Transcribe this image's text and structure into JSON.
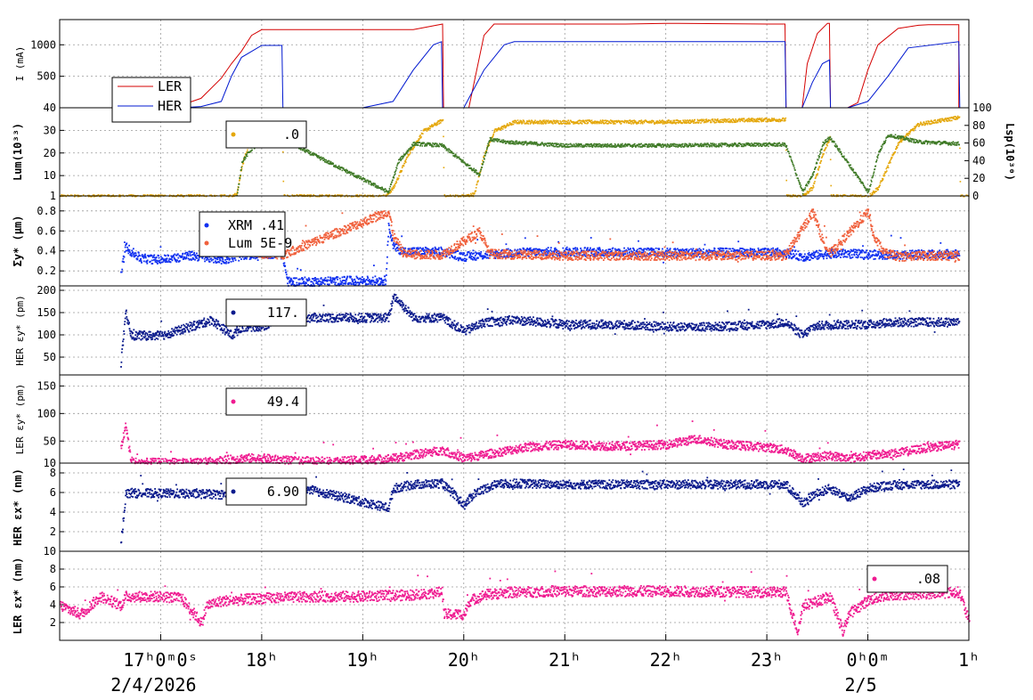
{
  "colors": {
    "red": "#d40000",
    "blue": "#0018d0",
    "navy": "#0a1a8c",
    "orange": "#e4a70a",
    "green": "#3f7a26",
    "tomato": "#f0603c",
    "pink": "#ef1a90",
    "xrm_blue": "#1030f0"
  },
  "x_axis": {
    "ticks": [
      {
        "hour": 17,
        "text": "17ʰ0ᵐ0ˢ"
      },
      {
        "hour": 18,
        "text": "18ʰ"
      },
      {
        "hour": 19,
        "text": "19ʰ"
      },
      {
        "hour": 20,
        "text": "20ʰ"
      },
      {
        "hour": 21,
        "text": "21ʰ"
      },
      {
        "hour": 22,
        "text": "22ʰ"
      },
      {
        "hour": 23,
        "text": "23ʰ"
      },
      {
        "hour": 24,
        "text": "0ʰ0ᵐ"
      },
      {
        "hour": 25,
        "text": "1ʰ"
      }
    ],
    "dates": [
      {
        "hour": 17,
        "text": "2/4/2026"
      },
      {
        "hour": 24,
        "text": "2/5"
      }
    ],
    "range_hours": [
      16.0,
      25.0
    ]
  },
  "chart_data": [
    {
      "type": "line",
      "ylabel": "I (mA)",
      "ylim": [
        0,
        1400
      ],
      "yticks": [
        500,
        1000
      ],
      "grid": true,
      "legend": "top-left",
      "series": [
        {
          "name": "LER",
          "color": "red",
          "x": [
            16.0,
            16.3,
            16.5,
            16.7,
            17.0,
            17.2,
            17.4,
            17.6,
            17.7,
            17.8,
            17.9,
            18.0,
            18.5,
            19.0,
            19.5,
            19.79,
            19.8,
            20.0,
            20.05,
            20.2,
            20.3,
            20.6,
            21.0,
            21.6,
            22.0,
            23.0,
            23.18,
            23.19,
            23.35,
            23.4,
            23.5,
            23.6,
            23.62,
            23.63,
            23.8,
            23.9,
            24.0,
            24.1,
            24.3,
            24.5,
            24.6,
            24.9,
            24.9,
            25.0
          ],
          "y": [
            0,
            0,
            0,
            10,
            30,
            40,
            150,
            470,
            700,
            900,
            1150,
            1240,
            1240,
            1240,
            1240,
            1330,
            0,
            0,
            0,
            1150,
            1330,
            1330,
            1330,
            1330,
            1340,
            1330,
            1330,
            0,
            0,
            700,
            1180,
            1340,
            1340,
            0,
            0,
            80,
            600,
            1000,
            1260,
            1310,
            1320,
            1320,
            0,
            0
          ]
        },
        {
          "name": "HER",
          "color": "blue",
          "x": [
            16.0,
            17.2,
            17.4,
            17.6,
            17.7,
            17.8,
            18.0,
            18.2,
            18.21,
            19.0,
            19.3,
            19.5,
            19.7,
            19.78,
            19.79,
            20.0,
            20.2,
            20.4,
            20.5,
            21.0,
            22.0,
            23.0,
            23.18,
            23.19,
            23.35,
            23.45,
            23.55,
            23.62,
            23.63,
            23.8,
            24.0,
            24.2,
            24.4,
            24.9,
            24.91,
            25.0
          ],
          "y": [
            0,
            0,
            20,
            100,
            500,
            800,
            990,
            990,
            0,
            0,
            100,
            600,
            1000,
            1050,
            0,
            0,
            600,
            1000,
            1050,
            1050,
            1050,
            1050,
            1050,
            0,
            0,
            400,
            700,
            760,
            0,
            0,
            100,
            500,
            950,
            1050,
            0,
            0
          ]
        }
      ]
    },
    {
      "type": "line",
      "ylabel": "Lum(10³³)",
      "y2label": "Lsp(10³⁰)",
      "ylim": [
        1,
        40
      ],
      "yticks": [
        1,
        10,
        20,
        30,
        40
      ],
      "y2lim": [
        0,
        100
      ],
      "y2ticks": [
        0,
        20,
        40,
        60,
        80,
        100
      ],
      "legend_text": ".0",
      "series": [
        {
          "color": "orange",
          "axis": "left",
          "x": [
            16.0,
            17.7,
            17.75,
            17.8,
            17.9,
            18.0,
            18.2,
            18.21,
            19.0,
            19.22,
            19.3,
            19.45,
            19.6,
            19.79,
            19.8,
            20.0,
            20.1,
            20.2,
            20.3,
            20.5,
            21.0,
            22.0,
            23.0,
            23.18,
            23.19,
            23.35,
            23.45,
            23.55,
            23.62,
            23.63,
            23.8,
            24.0,
            24.1,
            24.3,
            24.5,
            24.9,
            24.91,
            25.0
          ],
          "y": [
            1,
            1,
            2,
            15,
            28,
            32,
            33,
            1,
            1,
            1,
            5,
            20,
            30,
            35,
            1,
            1,
            2,
            20,
            30,
            34,
            34,
            34,
            35,
            35,
            1,
            1,
            5,
            20,
            27,
            1,
            1,
            1,
            5,
            25,
            33,
            36,
            1,
            1
          ]
        },
        {
          "color": "green",
          "axis": "right",
          "x": [
            17.75,
            17.8,
            17.9,
            18.0,
            18.2,
            19.25,
            19.35,
            19.5,
            19.78,
            20.15,
            20.25,
            20.4,
            21.0,
            22.0,
            23.0,
            23.18,
            23.35,
            23.45,
            23.55,
            23.62,
            24.0,
            24.1,
            24.2,
            24.5,
            24.9
          ],
          "y": [
            0,
            40,
            55,
            60,
            65,
            5,
            40,
            60,
            58,
            25,
            65,
            62,
            58,
            58,
            59,
            59,
            5,
            25,
            60,
            67,
            5,
            50,
            70,
            62,
            60
          ]
        }
      ]
    },
    {
      "type": "scatter",
      "ylabel": "Σy* (μm)",
      "ylim": [
        0.05,
        0.95
      ],
      "yticks": [
        0.2,
        0.4,
        0.6,
        0.8
      ],
      "series": [
        {
          "name": "XRM .41",
          "color": "xrm_blue",
          "x": [
            16.6,
            16.65,
            16.7,
            16.8,
            17.0,
            17.3,
            17.6,
            17.8,
            18.0,
            18.2,
            18.25,
            18.5,
            19.0,
            19.22,
            19.25,
            19.3,
            19.4,
            19.6,
            19.78,
            20.0,
            20.1,
            20.5,
            21.0,
            22.0,
            23.0,
            23.18,
            23.35,
            23.45,
            23.6,
            23.8,
            24.0,
            24.2,
            24.5,
            24.9
          ],
          "y": [
            0.2,
            0.45,
            0.4,
            0.33,
            0.32,
            0.36,
            0.32,
            0.36,
            0.38,
            0.37,
            0.1,
            0.1,
            0.11,
            0.11,
            0.65,
            0.45,
            0.4,
            0.4,
            0.4,
            0.35,
            0.36,
            0.39,
            0.4,
            0.39,
            0.39,
            0.39,
            0.35,
            0.36,
            0.38,
            0.38,
            0.37,
            0.37,
            0.37,
            0.38
          ]
        },
        {
          "name": "Lum 5E-9",
          "color": "tomato",
          "x": [
            17.75,
            17.8,
            18.0,
            18.2,
            19.25,
            19.3,
            19.4,
            19.6,
            19.78,
            20.15,
            20.25,
            20.5,
            21.0,
            22.0,
            23.0,
            23.18,
            23.45,
            23.55,
            23.62,
            24.0,
            24.05,
            24.15,
            24.3,
            24.5,
            24.9
          ],
          "y": [
            0.75,
            0.42,
            0.38,
            0.37,
            0.8,
            0.55,
            0.38,
            0.37,
            0.37,
            0.6,
            0.38,
            0.37,
            0.36,
            0.36,
            0.36,
            0.36,
            0.8,
            0.5,
            0.38,
            0.8,
            0.55,
            0.39,
            0.35,
            0.36,
            0.36
          ]
        }
      ]
    },
    {
      "type": "scatter",
      "ylabel": "HER εy* (pm)",
      "ylim": [
        10,
        210
      ],
      "yticks": [
        50,
        100,
        150,
        200
      ],
      "legend_text": "117.",
      "series": [
        {
          "color": "navy",
          "x": [
            16.6,
            16.65,
            16.7,
            17.0,
            17.3,
            17.5,
            17.7,
            17.8,
            18.0,
            18.2,
            19.25,
            19.3,
            19.5,
            19.78,
            20.0,
            20.2,
            20.5,
            21.0,
            21.5,
            22.0,
            22.5,
            23.0,
            23.18,
            23.35,
            23.45,
            23.62,
            23.8,
            24.0,
            24.2,
            24.5,
            24.9
          ],
          "y": [
            40,
            150,
            100,
            100,
            120,
            135,
            100,
            120,
            120,
            140,
            140,
            190,
            140,
            140,
            110,
            130,
            135,
            125,
            125,
            120,
            120,
            125,
            130,
            100,
            120,
            125,
            125,
            125,
            130,
            130,
            130
          ]
        }
      ]
    },
    {
      "type": "scatter",
      "ylabel": "LER εy* (pm)",
      "ylim": [
        10,
        170
      ],
      "yticks": [
        10,
        50,
        100,
        150
      ],
      "legend_text": "49.4",
      "series": [
        {
          "color": "pink",
          "x": [
            16.6,
            16.65,
            16.7,
            16.8,
            17.0,
            17.4,
            17.8,
            18.0,
            18.3,
            18.8,
            19.3,
            19.78,
            20.0,
            20.3,
            20.6,
            21.0,
            21.5,
            22.0,
            22.3,
            22.6,
            23.0,
            23.18,
            23.35,
            23.62,
            23.8,
            24.0,
            24.3,
            24.6,
            24.9
          ],
          "y": [
            40,
            80,
            15,
            12,
            12,
            12,
            20,
            20,
            15,
            15,
            20,
            35,
            20,
            30,
            40,
            45,
            42,
            45,
            55,
            45,
            40,
            35,
            20,
            25,
            20,
            25,
            30,
            40,
            45
          ]
        }
      ]
    },
    {
      "type": "scatter",
      "ylabel": "HER εx* (nm)",
      "ylim": [
        0,
        9
      ],
      "yticks": [
        2,
        4,
        6,
        8
      ],
      "legend_text": "6.90",
      "series": [
        {
          "color": "navy",
          "x": [
            16.6,
            16.65,
            17.0,
            17.5,
            17.75,
            18.0,
            18.2,
            19.25,
            19.3,
            19.5,
            19.78,
            20.0,
            20.1,
            20.3,
            20.5,
            21.0,
            22.0,
            23.0,
            23.18,
            23.35,
            23.45,
            23.62,
            23.8,
            24.0,
            24.2,
            24.5,
            24.9
          ],
          "y": [
            1,
            6,
            6,
            5.9,
            5.8,
            6.6,
            7.0,
            4.5,
            6.5,
            6.9,
            7.0,
            4.8,
            6.0,
            6.9,
            7.0,
            6.9,
            6.9,
            6.9,
            6.9,
            5.0,
            5.8,
            6.5,
            5.5,
            6.5,
            6.8,
            6.9,
            6.9
          ]
        }
      ]
    },
    {
      "type": "scatter",
      "ylabel": "LER εx* (nm)",
      "ylim": [
        0,
        10
      ],
      "yticks": [
        2,
        4,
        6,
        8,
        10
      ],
      "legend_text": ".08",
      "series": [
        {
          "color": "pink",
          "x": [
            16.0,
            16.2,
            16.4,
            16.6,
            16.65,
            16.8,
            17.0,
            17.2,
            17.4,
            17.45,
            17.6,
            18.0,
            18.5,
            19.0,
            19.5,
            19.78,
            19.8,
            20.0,
            20.05,
            20.2,
            20.5,
            21.0,
            22.0,
            23.0,
            23.18,
            23.3,
            23.35,
            23.5,
            23.62,
            23.75,
            23.8,
            24.0,
            24.2,
            24.5,
            24.9,
            25.0
          ],
          "y": [
            4,
            3,
            5,
            4,
            5,
            5,
            5,
            4.8,
            2,
            4.0,
            4.5,
            4.8,
            5.0,
            5.0,
            5.2,
            5.5,
            3,
            3,
            4.5,
            5.2,
            5.5,
            5.6,
            5.6,
            5.5,
            5.5,
            1,
            4,
            4.5,
            5.0,
            1,
            3,
            4.6,
            5.2,
            5.3,
            5.5,
            2
          ]
        }
      ]
    }
  ]
}
